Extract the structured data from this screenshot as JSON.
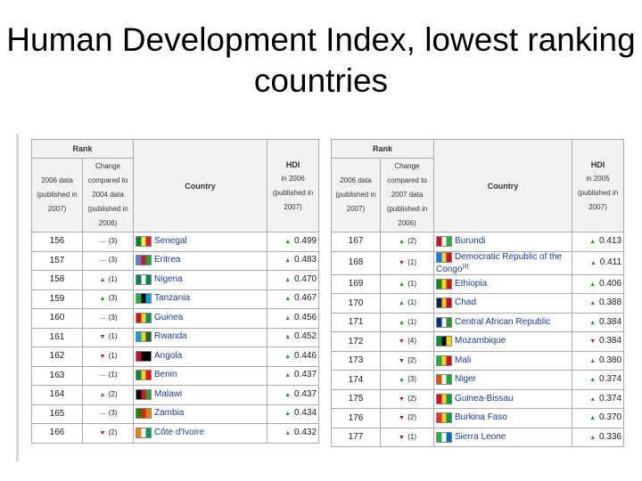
{
  "title": "Human Development Index, lowest ranking countries",
  "headers": {
    "rank": "Rank",
    "left_rank_col": "2006 data (published in 2007)",
    "left_change_col": "Change compared to 2004 data (published in 2006)",
    "left_hdi_col": "in 2006 (published in 2007)",
    "right_rank_col": "2006 data (published in 2007)",
    "right_change_col": "Change compared to 2007 data (published in 2006)",
    "right_hdi_col": "in 2005 (published in 2007)",
    "country": "Country",
    "hdi": "HDI"
  },
  "left_rows": [
    {
      "rank": "156",
      "change_dir": "same",
      "change": "(3)",
      "country": "Senegal",
      "flag": [
        "#00853f",
        "#fdef42",
        "#e31b23"
      ],
      "hdi_dir": "up",
      "hdi": "0.499"
    },
    {
      "rank": "157",
      "change_dir": "same",
      "change": "(3)",
      "country": "Eritrea",
      "flag": [
        "#4189dd",
        "#ea0437",
        "#12ad2b"
      ],
      "hdi_dir": "up",
      "hdi": "0.483"
    },
    {
      "rank": "158",
      "change_dir": "up",
      "change": "(1)",
      "country": "Nigeria",
      "flag": [
        "#008751",
        "#ffffff",
        "#008751"
      ],
      "hdi_dir": "up",
      "hdi": "0.470"
    },
    {
      "rank": "159",
      "change_dir": "up",
      "change": "(3)",
      "country": "Tanzania",
      "flag": [
        "#1eb53a",
        "#000000",
        "#00a3dd"
      ],
      "hdi_dir": "up",
      "hdi": "0.467"
    },
    {
      "rank": "160",
      "change_dir": "same",
      "change": "(3)",
      "country": "Guinea",
      "flag": [
        "#ce1126",
        "#fcd116",
        "#009460"
      ],
      "hdi_dir": "up",
      "hdi": "0.456"
    },
    {
      "rank": "161",
      "change_dir": "down",
      "change": "(1)",
      "country": "Rwanda",
      "flag": [
        "#00a1de",
        "#fad201",
        "#20603d"
      ],
      "hdi_dir": "up",
      "hdi": "0.452"
    },
    {
      "rank": "162",
      "change_dir": "down",
      "change": "(1)",
      "country": "Angola",
      "flag": [
        "#cc092f",
        "#000000",
        "#000000"
      ],
      "hdi_dir": "up",
      "hdi": "0.446"
    },
    {
      "rank": "163",
      "change_dir": "same",
      "change": "(1)",
      "country": "Benin",
      "flag": [
        "#008751",
        "#fcd116",
        "#e8112d"
      ],
      "hdi_dir": "up",
      "hdi": "0.437"
    },
    {
      "rank": "164",
      "change_dir": "up",
      "change": "(2)",
      "country": "Malawi",
      "flag": [
        "#000000",
        "#ce1126",
        "#339e35"
      ],
      "hdi_dir": "up",
      "hdi": "0.437"
    },
    {
      "rank": "165",
      "change_dir": "same",
      "change": "(3)",
      "country": "Zambia",
      "flag": [
        "#198a00",
        "#de2010",
        "#ef7d00"
      ],
      "hdi_dir": "up",
      "hdi": "0.434"
    },
    {
      "rank": "166",
      "change_dir": "down",
      "change": "(2)",
      "country": "Côte d'Ivoire",
      "flag": [
        "#f77f00",
        "#ffffff",
        "#009e60"
      ],
      "hdi_dir": "up",
      "hdi": "0.432"
    }
  ],
  "right_rows": [
    {
      "rank": "167",
      "change_dir": "up",
      "change": "(2)",
      "country": "Burundi",
      "flag": [
        "#ce1126",
        "#ffffff",
        "#1eb53a"
      ],
      "hdi_dir": "up",
      "hdi": "0.413"
    },
    {
      "rank": "168",
      "change_dir": "down",
      "change": "(1)",
      "country": "Democratic Republic of the Congo",
      "sup": "[4]",
      "flag": [
        "#007fff",
        "#f7d618",
        "#ce1021"
      ],
      "hdi_dir": "up",
      "hdi": "0.411"
    },
    {
      "rank": "169",
      "change_dir": "up",
      "change": "(1)",
      "country": "Ethiopia",
      "flag": [
        "#078930",
        "#fcdd09",
        "#da121a"
      ],
      "hdi_dir": "up",
      "hdi": "0.406"
    },
    {
      "rank": "170",
      "change_dir": "up",
      "change": "(1)",
      "country": "Chad",
      "flag": [
        "#002664",
        "#fecb00",
        "#c60c30"
      ],
      "hdi_dir": "up",
      "hdi": "0.388"
    },
    {
      "rank": "171",
      "change_dir": "up",
      "change": "(1)",
      "country": "Central African Republic",
      "flag": [
        "#003082",
        "#ffffff",
        "#289728"
      ],
      "hdi_dir": "up",
      "hdi": "0.384"
    },
    {
      "rank": "172",
      "change_dir": "down",
      "change": "(4)",
      "country": "Mozambique",
      "flag": [
        "#009739",
        "#000000",
        "#fcd116"
      ],
      "hdi_dir": "down",
      "hdi": "0.384"
    },
    {
      "rank": "173",
      "change_dir": "down",
      "change": "(2)",
      "country": "Mali",
      "flag": [
        "#14b53a",
        "#fcd116",
        "#ce1126"
      ],
      "hdi_dir": "up",
      "hdi": "0.380"
    },
    {
      "rank": "174",
      "change_dir": "up",
      "change": "(3)",
      "country": "Niger",
      "flag": [
        "#e05206",
        "#ffffff",
        "#0db02b"
      ],
      "hdi_dir": "up",
      "hdi": "0.374"
    },
    {
      "rank": "175",
      "change_dir": "down",
      "change": "(2)",
      "country": "Guinea-Bissau",
      "flag": [
        "#ce1126",
        "#fcd116",
        "#009e49"
      ],
      "hdi_dir": "up",
      "hdi": "0.374"
    },
    {
      "rank": "176",
      "change_dir": "down",
      "change": "(2)",
      "country": "Burkina Faso",
      "flag": [
        "#ef2b2d",
        "#fcd116",
        "#009e49"
      ],
      "hdi_dir": "up",
      "hdi": "0.370"
    },
    {
      "rank": "177",
      "change_dir": "down",
      "change": "(1)",
      "country": "Sierra Leone",
      "flag": [
        "#1eb53a",
        "#ffffff",
        "#0072c6"
      ],
      "hdi_dir": "up",
      "hdi": "0.336"
    }
  ]
}
